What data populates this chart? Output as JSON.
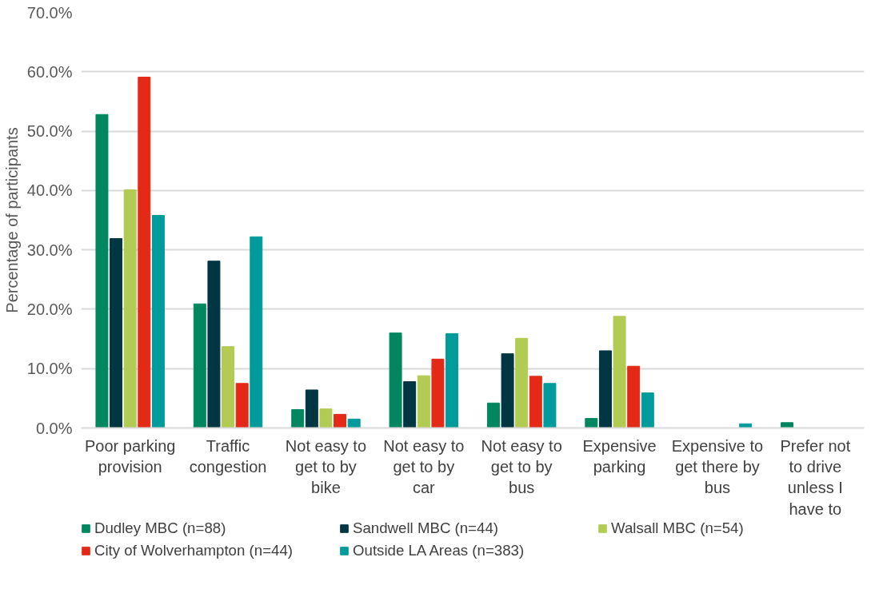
{
  "chart_data": {
    "type": "bar",
    "ylabel": "Percentage of participants",
    "categories": [
      "Poor parking provision",
      "Traffic congestion",
      "Not easy to get to by bike",
      "Not easy to get to by car",
      "Not easy to get to by bus",
      "Expensive parking",
      "Expensive to get there by bus",
      "Prefer not to drive unless I have to"
    ],
    "series": [
      {
        "name": "Dudley MBC (n=88)",
        "color": "#00875f",
        "values": [
          52.8,
          20.9,
          3.1,
          16.0,
          4.2,
          1.6,
          0,
          0.9
        ]
      },
      {
        "name": "Sandwell MBC (n=44)",
        "color": "#003641",
        "values": [
          31.9,
          28.1,
          6.4,
          7.8,
          12.5,
          13.0,
          0,
          0
        ]
      },
      {
        "name": "Walsall MBC (n=54)",
        "color": "#b1cb53",
        "values": [
          40.1,
          13.7,
          3.2,
          8.8,
          15.1,
          18.8,
          0,
          0
        ]
      },
      {
        "name": "City of Wolverhampton (n=44)",
        "color": "#e42a17",
        "values": [
          59.1,
          7.5,
          2.3,
          11.6,
          8.7,
          10.4,
          0,
          0
        ]
      },
      {
        "name": "Outside LA Areas (n=383)",
        "color": "#009b9a",
        "values": [
          35.8,
          32.2,
          1.5,
          15.9,
          7.5,
          5.9,
          0.7,
          0
        ]
      }
    ],
    "ylim": [
      0,
      70
    ],
    "yticks": [
      {
        "value": 0,
        "label": "0.0%"
      },
      {
        "value": 10,
        "label": "10.0%"
      },
      {
        "value": 20,
        "label": "20.0%"
      },
      {
        "value": 30,
        "label": "30.0%"
      },
      {
        "value": 40,
        "label": "40.0%"
      },
      {
        "value": 50,
        "label": "50.0%"
      },
      {
        "value": 60,
        "label": "60.0%"
      },
      {
        "value": 70,
        "label": "70.0%"
      }
    ],
    "grid": "y",
    "legend": "bottom"
  }
}
